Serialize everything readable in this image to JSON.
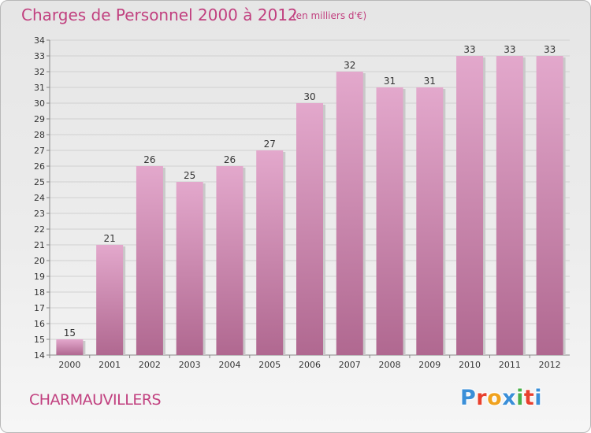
{
  "header": {
    "title": "Charges de Personnel 2000 à 2012",
    "subtitle": "(en milliers d'€)"
  },
  "footer": {
    "commune": "CHARMAUVILLERS",
    "logo_letters": [
      "P",
      "r",
      "o",
      "x",
      "i",
      "t",
      "i"
    ],
    "logo_colors": [
      "#3a8fd8",
      "#e8402e",
      "#f0a21e",
      "#3a8fd8",
      "#48b04a",
      "#e8402e",
      "#3a8fd8"
    ]
  },
  "colors": {
    "bar_top": "#e3a8cc",
    "bar_bottom": "#b06890",
    "text": "#c1407f",
    "axis_text": "#333333",
    "grid": "#d0d0d0"
  },
  "chart_data": {
    "type": "bar",
    "categories": [
      "2000",
      "2001",
      "2002",
      "2003",
      "2004",
      "2005",
      "2006",
      "2007",
      "2008",
      "2009",
      "2010",
      "2011",
      "2012"
    ],
    "values": [
      15,
      21,
      26,
      25,
      26,
      27,
      30,
      32,
      31,
      31,
      33,
      33,
      33
    ],
    "ylim": [
      14,
      34
    ],
    "yticks": [
      14,
      15,
      16,
      17,
      18,
      19,
      20,
      21,
      22,
      23,
      24,
      25,
      26,
      27,
      28,
      29,
      30,
      31,
      32,
      33,
      34
    ],
    "grid": true
  }
}
